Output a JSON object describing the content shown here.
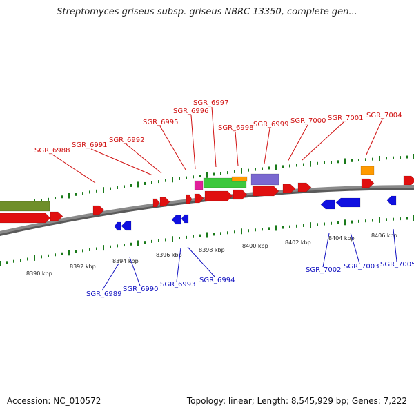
{
  "title": "Streptomyces griseus subsp. griseus NBRC 13350, complete gen...",
  "accession": "Accession: NC_010572",
  "summary": "Topology: linear; Length: 8,545,929 bp; Genes: 7,222",
  "colors": {
    "forward": "#e01010",
    "reverse": "#1010e0",
    "label_forward": "#d01010",
    "label_reverse": "#1010c0",
    "tick": "#1a7a1a",
    "backbone": "#8a8a8a",
    "olive": "#6f8f2a",
    "green": "#3cc83c",
    "orange": "#ff9a00",
    "purple": "#7a68d0",
    "magenta": "#e0209a"
  },
  "scale_labels": [
    "8390 kbp",
    "8392 kbp",
    "8394 kbp",
    "8396 kbp",
    "8398 kbp",
    "8400 kbp",
    "8402 kbp",
    "8404 kbp",
    "8406 kbp"
  ],
  "forward_genes": [
    "SGR_6988",
    "SGR_6991",
    "SGR_6992",
    "SGR_6995",
    "SGR_6996",
    "SGR_6997",
    "SGR_6998",
    "SGR_6999",
    "SGR_7000",
    "SGR_7001",
    "SGR_7004"
  ],
  "reverse_genes": [
    "SGR_6989",
    "SGR_6990",
    "SGR_6993",
    "SGR_6994",
    "SGR_7002",
    "SGR_7003",
    "SGR_7005"
  ]
}
